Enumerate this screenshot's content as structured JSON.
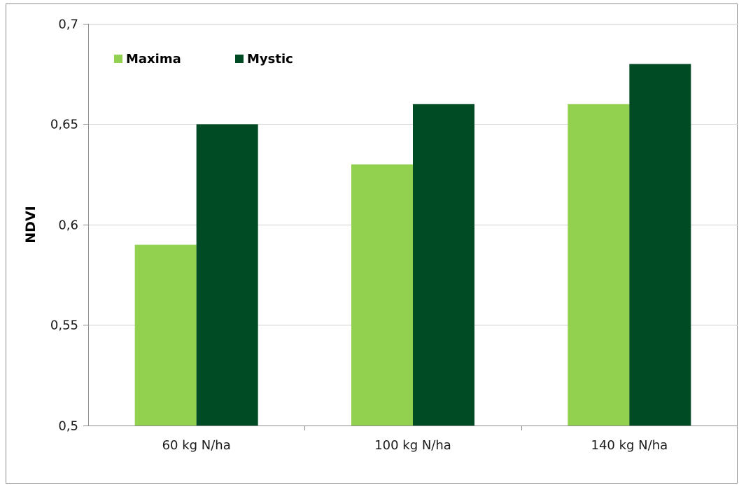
{
  "chart_data": {
    "type": "bar",
    "categories": [
      "60 kg N/ha",
      "100 kg N/ha",
      "140 kg N/ha"
    ],
    "series": [
      {
        "name": "Maxima",
        "values": [
          0.59,
          0.63,
          0.66
        ],
        "color": "#92d050"
      },
      {
        "name": "Mystic",
        "values": [
          0.65,
          0.66,
          0.68
        ],
        "color": "#004b23"
      }
    ],
    "ylabel": "NDVI",
    "xlabel": "",
    "ylim": [
      0.5,
      0.7
    ],
    "yticks": [
      0.5,
      0.55,
      0.6,
      0.65,
      0.7
    ],
    "ytick_labels": [
      "0,5",
      "0,55",
      "0,6",
      "0,65",
      "0,7"
    ],
    "grid": true,
    "legend_position": "top-left"
  }
}
